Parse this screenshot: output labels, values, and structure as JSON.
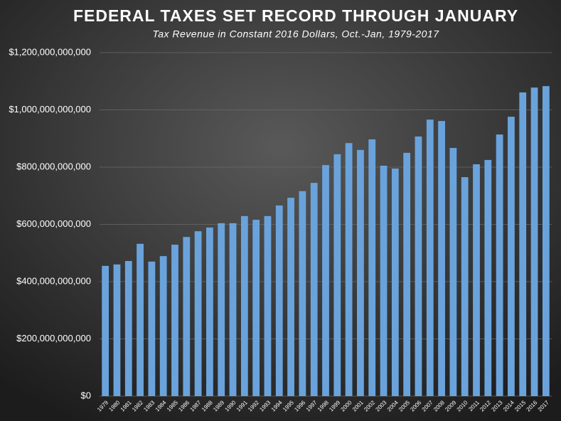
{
  "chart_data": {
    "type": "bar",
    "title": "FEDERAL TAXES SET RECORD THROUGH JANUARY",
    "subtitle": "Tax Revenue in Constant 2016 Dollars, Oct.-Jan, 1979-2017",
    "categories": [
      "1979",
      "1980",
      "1981",
      "1982",
      "1983",
      "1984",
      "1985",
      "1986",
      "1987",
      "1988",
      "1989",
      "1990",
      "1991",
      "1992",
      "1993",
      "1994",
      "1995",
      "1996",
      "1997",
      "1998",
      "1999",
      "2000",
      "2001",
      "2002",
      "2003",
      "2004",
      "2005",
      "2006",
      "2007",
      "2008",
      "2009",
      "2010",
      "2011",
      "2012",
      "2013",
      "2014",
      "2015",
      "2016",
      "2017"
    ],
    "values": [
      455000000000,
      460000000000,
      472000000000,
      532000000000,
      470000000000,
      489000000000,
      529000000000,
      556000000000,
      576000000000,
      589000000000,
      604000000000,
      604000000000,
      629000000000,
      616000000000,
      629000000000,
      666000000000,
      693000000000,
      716000000000,
      745000000000,
      807000000000,
      845000000000,
      884000000000,
      860000000000,
      897000000000,
      805000000000,
      795000000000,
      850000000000,
      907000000000,
      966000000000,
      961000000000,
      867000000000,
      765000000000,
      810000000000,
      825000000000,
      914000000000,
      976000000000,
      1061000000000,
      1078000000000,
      1083000000000
    ],
    "color": "#6aa3dc",
    "ylim": [
      0,
      1200000000000
    ],
    "yticks": [
      {
        "value": 0,
        "label": "$0"
      },
      {
        "value": 200000000000,
        "label": "$200,000,000,000"
      },
      {
        "value": 400000000000,
        "label": "$400,000,000,000"
      },
      {
        "value": 600000000000,
        "label": "$600,000,000,000"
      },
      {
        "value": 800000000000,
        "label": "$800,000,000,000"
      },
      {
        "value": 1000000000000,
        "label": "$1,000,000,000,000"
      },
      {
        "value": 1200000000000,
        "label": "$1,200,000,000,000"
      }
    ],
    "grid": true
  }
}
